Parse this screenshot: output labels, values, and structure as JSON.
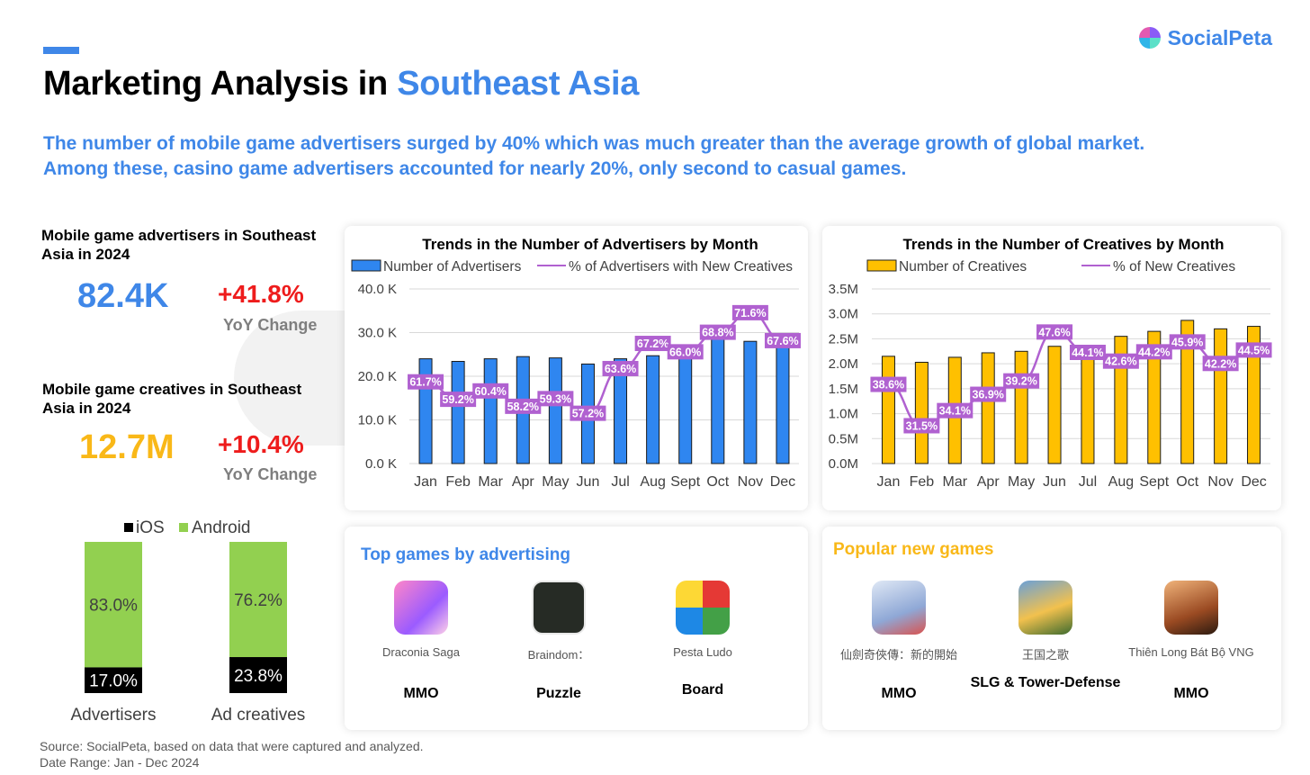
{
  "header": {
    "logo_text": "SocialPeta",
    "title_prefix": "Marketing Analysis in ",
    "title_highlight": "Southeast Asia",
    "subtitle_line1": "The number of mobile game advertisers surged by 40% which was much greater than the average growth of global market.",
    "subtitle_line2": "Among these, casino game advertisers accounted for nearly 20%, only second to casual games."
  },
  "stats": {
    "advertisers": {
      "label": "Mobile game advertisers in Southeast Asia in 2024",
      "value": "82.4K",
      "change": "+41.8%",
      "change_label": "YoY Change"
    },
    "creatives": {
      "label": "Mobile game creatives in Southeast Asia in 2024",
      "value": "12.7M",
      "change": "+10.4%",
      "change_label": "YoY Change"
    }
  },
  "colors": {
    "brand_blue": "#3f87e8",
    "red": "#ee1c1c",
    "orange": "#f9b818",
    "bar_blue": "#2f86f0",
    "bar_yellow": "#ffc000",
    "line_purple": "#b061d0",
    "android_green": "#92d050",
    "ios_black": "#000000"
  },
  "chart_data": [
    {
      "type": "bar",
      "title": "Trends in the Number of Advertisers by Month",
      "categories": [
        "Jan",
        "Feb",
        "Mar",
        "Apr",
        "May",
        "Jun",
        "Jul",
        "Aug",
        "Sept",
        "Oct",
        "Nov",
        "Dec"
      ],
      "y_ticks": [
        "0.0 K",
        "10.0 K",
        "20.0 K",
        "30.0 K",
        "40.0 K"
      ],
      "ylim": [
        0,
        40000
      ],
      "series": [
        {
          "name": "Number of Advertisers",
          "kind": "bar",
          "values": [
            24000,
            23400,
            24000,
            24500,
            24200,
            22800,
            24000,
            24700,
            27000,
            29800,
            28000,
            28500
          ]
        },
        {
          "name": "% of Advertisers with New Creatives",
          "kind": "line",
          "values": [
            61.7,
            59.2,
            60.4,
            58.2,
            59.3,
            57.2,
            63.6,
            67.2,
            66.0,
            68.8,
            71.6,
            67.6
          ],
          "labels": [
            "61.7%",
            "59.2%",
            "60.4%",
            "58.2%",
            "59.3%",
            "57.2%",
            "63.6%",
            "67.2%",
            "66.0%",
            "68.8%",
            "71.6%",
            "67.6%"
          ],
          "secondary_range": [
            50,
            75
          ]
        }
      ]
    },
    {
      "type": "bar",
      "title": "Trends in the Number of Creatives by Month",
      "categories": [
        "Jan",
        "Feb",
        "Mar",
        "Apr",
        "May",
        "Jun",
        "Jul",
        "Aug",
        "Sept",
        "Oct",
        "Nov",
        "Dec"
      ],
      "y_ticks": [
        "0.0M",
        "0.5M",
        "1.0M",
        "1.5M",
        "2.0M",
        "2.5M",
        "3.0M",
        "3.5M"
      ],
      "ylim": [
        0,
        3500000
      ],
      "series": [
        {
          "name": "Number of Creatives",
          "kind": "bar",
          "values": [
            2150000,
            2030000,
            2130000,
            2220000,
            2250000,
            2350000,
            2350000,
            2550000,
            2650000,
            2870000,
            2700000,
            2750000
          ]
        },
        {
          "name": "% of New Creatives",
          "kind": "line",
          "values": [
            38.6,
            31.5,
            34.1,
            36.9,
            39.2,
            47.6,
            44.1,
            42.6,
            44.2,
            45.9,
            42.2,
            44.5
          ],
          "labels": [
            "38.6%",
            "31.5%",
            "34.1%",
            "36.9%",
            "39.2%",
            "47.6%",
            "44.1%",
            "42.6%",
            "44.2%",
            "45.9%",
            "42.2%",
            "44.5%"
          ],
          "secondary_range": [
            25,
            55
          ]
        }
      ]
    },
    {
      "type": "bar",
      "stacked": true,
      "categories": [
        "Advertisers",
        "Ad creatives"
      ],
      "series": [
        {
          "name": "iOS",
          "values": [
            17.0,
            23.8
          ],
          "labels": [
            "17.0%",
            "23.8%"
          ]
        },
        {
          "name": "Android",
          "values": [
            83.0,
            76.2
          ],
          "labels": [
            "83.0%",
            "76.2%"
          ]
        }
      ],
      "ylim": [
        0,
        100
      ]
    }
  ],
  "top_games": {
    "title": "Top games by advertising",
    "games": [
      {
        "name": "Draconia Saga",
        "genre": "MMO"
      },
      {
        "name": "Braindom：",
        "genre": "Puzzle"
      },
      {
        "name": "Pesta Ludo",
        "genre": "Board"
      }
    ]
  },
  "new_games": {
    "title": "Popular new games",
    "games": [
      {
        "name": "仙劍奇俠傳：新的開始",
        "genre": "MMO"
      },
      {
        "name": "王国之歌",
        "genre": "SLG & Tower-Defense"
      },
      {
        "name": "Thiên Long Bát Bộ VNG",
        "genre": "MMO"
      }
    ]
  },
  "footer": {
    "source": "Source: SocialPeta, based on data that were captured and analyzed.",
    "date_range": "Date Range: Jan - Dec 2024"
  }
}
